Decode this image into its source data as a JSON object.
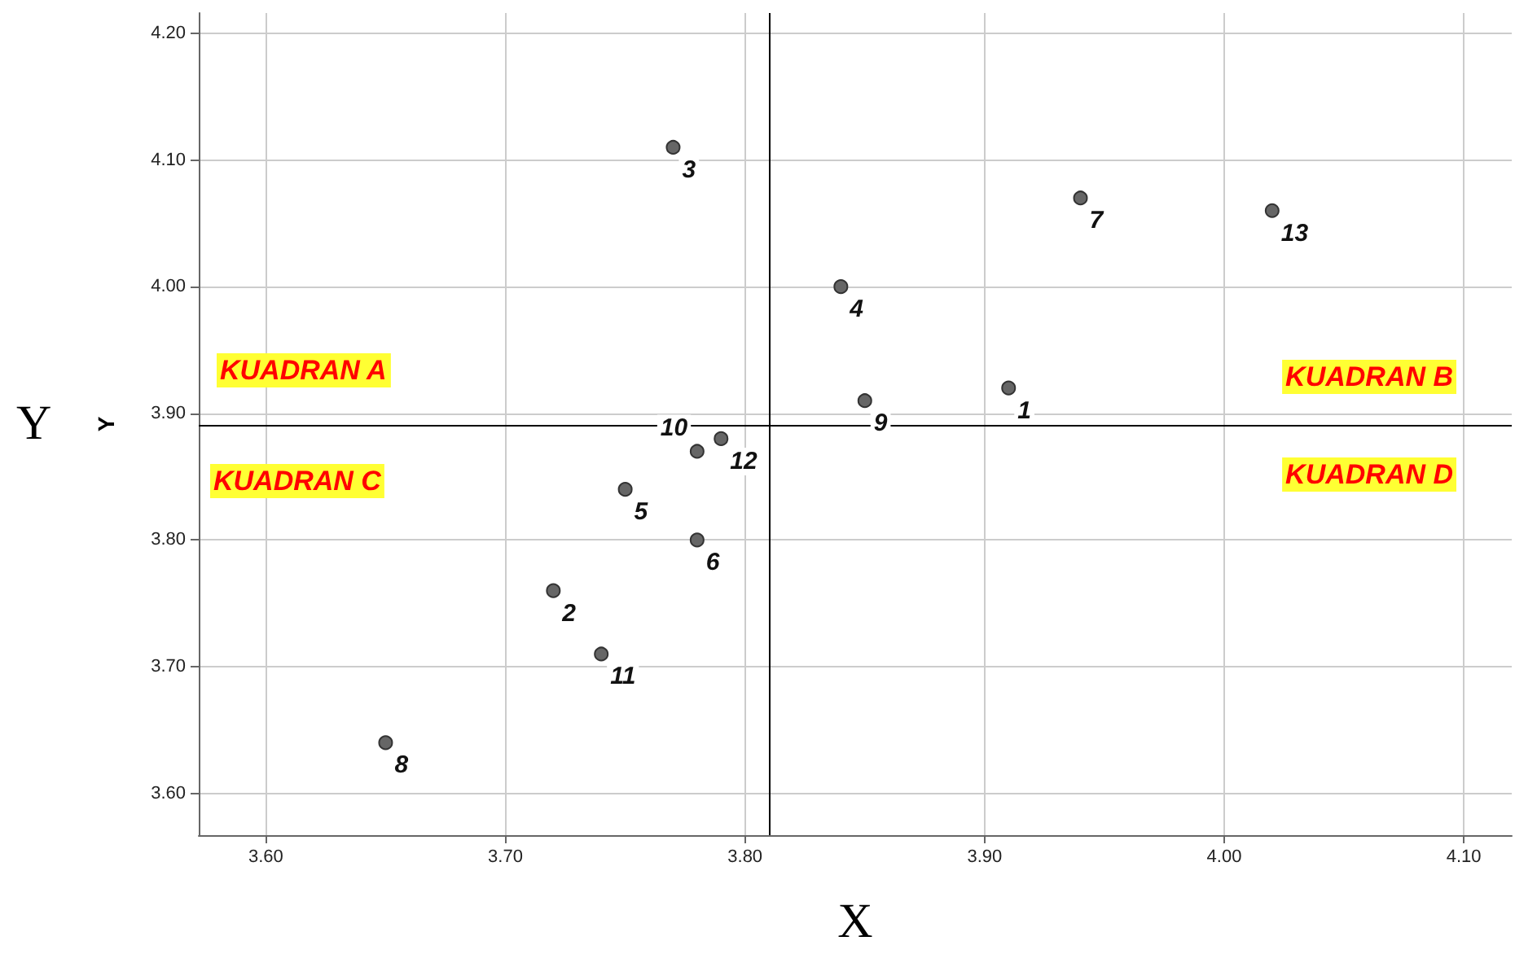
{
  "chart_data": {
    "type": "scatter",
    "xlabel": "X",
    "ylabel": "Y",
    "annotations": [
      "Y",
      "KUADRAN A",
      "KUADRAN B",
      "KUADRAN C",
      "KUADRAN D"
    ],
    "series": [
      {
        "name": "1",
        "color": "#666666",
        "x": [
          3.91
        ],
        "values": [
          3.92
        ]
      },
      {
        "name": "2",
        "color": "#666666",
        "x": [
          3.72
        ],
        "values": [
          3.76
        ]
      },
      {
        "name": "3",
        "color": "#666666",
        "x": [
          3.77
        ],
        "values": [
          4.11
        ]
      },
      {
        "name": "4",
        "color": "#666666",
        "x": [
          3.84
        ],
        "values": [
          4.0
        ]
      },
      {
        "name": "5",
        "color": "#666666",
        "x": [
          3.75
        ],
        "values": [
          3.84
        ]
      },
      {
        "name": "6",
        "color": "#666666",
        "x": [
          3.78
        ],
        "values": [
          3.8
        ]
      },
      {
        "name": "7",
        "color": "#666666",
        "x": [
          3.94
        ],
        "values": [
          4.07
        ]
      },
      {
        "name": "8",
        "color": "#666666",
        "x": [
          3.65
        ],
        "values": [
          3.64
        ]
      },
      {
        "name": "9",
        "color": "#666666",
        "x": [
          3.85
        ],
        "values": [
          3.91
        ]
      },
      {
        "name": "10",
        "color": "#666666",
        "x": [
          3.78
        ],
        "values": [
          3.87
        ]
      },
      {
        "name": "11",
        "color": "#666666",
        "x": [
          3.74
        ],
        "values": [
          3.71
        ]
      },
      {
        "name": "12",
        "color": "#666666",
        "x": [
          3.79
        ],
        "values": [
          3.88
        ]
      },
      {
        "name": "13",
        "color": "#666666",
        "x": [
          4.02
        ],
        "values": [
          4.06
        ]
      }
    ],
    "marker": "circle",
    "xlim": [
      3.572,
      4.12
    ],
    "ylim": [
      3.567,
      4.216
    ],
    "xticks": [
      {
        "value": 3.6,
        "label": "3.60"
      },
      {
        "value": 3.7,
        "label": "3.70"
      },
      {
        "value": 3.8,
        "label": "3.80"
      },
      {
        "value": 3.9,
        "label": "3.90"
      },
      {
        "value": 4.0,
        "label": "4.00"
      },
      {
        "value": 4.1,
        "label": "4.10"
      }
    ],
    "yticks": [
      {
        "value": 3.6,
        "label": "3.60"
      },
      {
        "value": 3.7,
        "label": "3.70"
      },
      {
        "value": 3.8,
        "label": "3.80"
      },
      {
        "value": 3.9,
        "label": "3.90"
      },
      {
        "value": 4.0,
        "label": "4.00"
      },
      {
        "value": 4.1,
        "label": "4.10"
      },
      {
        "value": 4.2,
        "label": "4.20"
      }
    ],
    "grid": true,
    "ref_lines": [
      {
        "axis": "x",
        "value": 3.81,
        "color": "#000000"
      },
      {
        "axis": "y",
        "value": 3.89,
        "color": "#000000"
      }
    ]
  }
}
